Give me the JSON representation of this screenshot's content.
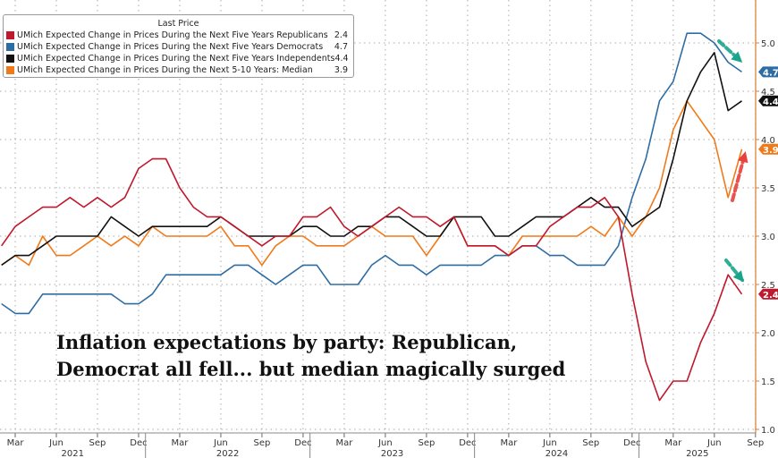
{
  "chart_data": {
    "type": "line",
    "title": "",
    "legend_title": "Last Price",
    "legend_placement": "top-left",
    "grid": true,
    "ylim": [
      1.0,
      5.3
    ],
    "y_axis_side": "right",
    "y_ticks": [
      "1.0",
      "1.5",
      "2.0",
      "2.5",
      "3.0",
      "3.5",
      "4.0",
      "4.5",
      "5.0"
    ],
    "x_tick_labels": [
      "Mar",
      "Jun",
      "Sep",
      "Dec",
      "Mar",
      "Jun",
      "Sep",
      "Dec",
      "Mar",
      "Jun",
      "Sep",
      "Dec",
      "Mar",
      "Jun",
      "Sep",
      "Dec",
      "Mar",
      "Jun",
      "Sep"
    ],
    "x_tick_dates": [
      "2021-03",
      "2021-06",
      "2021-09",
      "2021-12",
      "2022-03",
      "2022-06",
      "2022-09",
      "2022-12",
      "2023-03",
      "2023-06",
      "2023-09",
      "2023-12",
      "2024-03",
      "2024-06",
      "2024-09",
      "2024-12",
      "2025-03",
      "2025-06",
      "2025-09"
    ],
    "year_labels": [
      "2021",
      "2022",
      "2023",
      "2024",
      "2025"
    ],
    "x": [
      "2021-02",
      "2021-03",
      "2021-04",
      "2021-05",
      "2021-06",
      "2021-07",
      "2021-08",
      "2021-09",
      "2021-10",
      "2021-11",
      "2021-12",
      "2022-01",
      "2022-02",
      "2022-03",
      "2022-04",
      "2022-05",
      "2022-06",
      "2022-07",
      "2022-08",
      "2022-09",
      "2022-10",
      "2022-11",
      "2022-12",
      "2023-01",
      "2023-02",
      "2023-03",
      "2023-04",
      "2023-05",
      "2023-06",
      "2023-07",
      "2023-08",
      "2023-09",
      "2023-10",
      "2023-11",
      "2023-12",
      "2024-01",
      "2024-02",
      "2024-03",
      "2024-04",
      "2024-05",
      "2024-06",
      "2024-07",
      "2024-08",
      "2024-09",
      "2024-10",
      "2024-11",
      "2024-12",
      "2025-01",
      "2025-02",
      "2025-03",
      "2025-04",
      "2025-05",
      "2025-06",
      "2025-07",
      "2025-08"
    ],
    "series": [
      {
        "name": "UMich Expected Change in Prices During the Next Five Years Republicans",
        "last": "2.4",
        "color": "#c0182c",
        "values": [
          2.9,
          3.1,
          3.2,
          3.3,
          3.3,
          3.4,
          3.3,
          3.4,
          3.3,
          3.4,
          3.7,
          3.8,
          3.8,
          3.5,
          3.3,
          3.2,
          3.2,
          3.1,
          3.0,
          2.9,
          3.0,
          3.0,
          3.2,
          3.2,
          3.3,
          3.1,
          3.0,
          3.1,
          3.2,
          3.3,
          3.2,
          3.2,
          3.1,
          3.2,
          2.9,
          2.9,
          2.9,
          2.8,
          2.9,
          2.9,
          3.1,
          3.2,
          3.3,
          3.3,
          3.4,
          3.2,
          2.4,
          1.7,
          1.3,
          1.5,
          1.5,
          1.9,
          2.2,
          2.6,
          2.4
        ]
      },
      {
        "name": "UMich Expected Change in Prices During the Next Five Years Democrats",
        "last": "4.7",
        "color": "#2e6da4",
        "values": [
          2.3,
          2.2,
          2.2,
          2.4,
          2.4,
          2.4,
          2.4,
          2.4,
          2.4,
          2.3,
          2.3,
          2.4,
          2.6,
          2.6,
          2.6,
          2.6,
          2.6,
          2.7,
          2.7,
          2.6,
          2.5,
          2.6,
          2.7,
          2.7,
          2.5,
          2.5,
          2.5,
          2.7,
          2.8,
          2.7,
          2.7,
          2.6,
          2.7,
          2.7,
          2.7,
          2.7,
          2.8,
          2.8,
          2.9,
          2.9,
          2.8,
          2.8,
          2.7,
          2.7,
          2.7,
          2.9,
          3.4,
          3.8,
          4.4,
          4.6,
          5.1,
          5.1,
          5.0,
          4.8,
          4.7
        ]
      },
      {
        "name": "UMich Expected Change in Prices During the Next Five Years Independents",
        "last": "4.4",
        "color": "#111111",
        "values": [
          2.7,
          2.8,
          2.8,
          2.9,
          3.0,
          3.0,
          3.0,
          3.0,
          3.2,
          3.1,
          3.0,
          3.1,
          3.1,
          3.1,
          3.1,
          3.1,
          3.2,
          3.1,
          3.0,
          3.0,
          3.0,
          3.0,
          3.1,
          3.1,
          3.0,
          3.0,
          3.1,
          3.1,
          3.2,
          3.2,
          3.1,
          3.0,
          3.0,
          3.2,
          3.2,
          3.2,
          3.0,
          3.0,
          3.1,
          3.2,
          3.2,
          3.2,
          3.3,
          3.4,
          3.3,
          3.3,
          3.1,
          3.2,
          3.3,
          3.8,
          4.4,
          4.7,
          4.9,
          4.3,
          4.4
        ]
      },
      {
        "name": "UMich Expected Change in Prices During the Next 5-10 Years: Median",
        "last": "3.9",
        "color": "#f07a1a",
        "values": [
          2.7,
          2.8,
          2.7,
          3.0,
          2.8,
          2.8,
          2.9,
          3.0,
          2.9,
          3.0,
          2.9,
          3.1,
          3.0,
          3.0,
          3.0,
          3.0,
          3.1,
          2.9,
          2.9,
          2.7,
          2.9,
          3.0,
          3.0,
          2.9,
          2.9,
          2.9,
          3.0,
          3.1,
          3.0,
          3.0,
          3.0,
          2.8,
          3.0,
          3.2,
          2.9,
          2.9,
          2.9,
          2.8,
          3.0,
          3.0,
          3.0,
          3.0,
          3.0,
          3.1,
          3.0,
          3.2,
          3.0,
          3.2,
          3.5,
          4.1,
          4.4,
          4.2,
          4.0,
          3.4,
          3.9
        ]
      }
    ],
    "annotation": [
      "Inflation expectations by party: Republican,",
      "Democrat all fell... but median magically surged"
    ],
    "arrow_colors": {
      "down": "#1aa58a",
      "up": "#e8403a"
    }
  }
}
